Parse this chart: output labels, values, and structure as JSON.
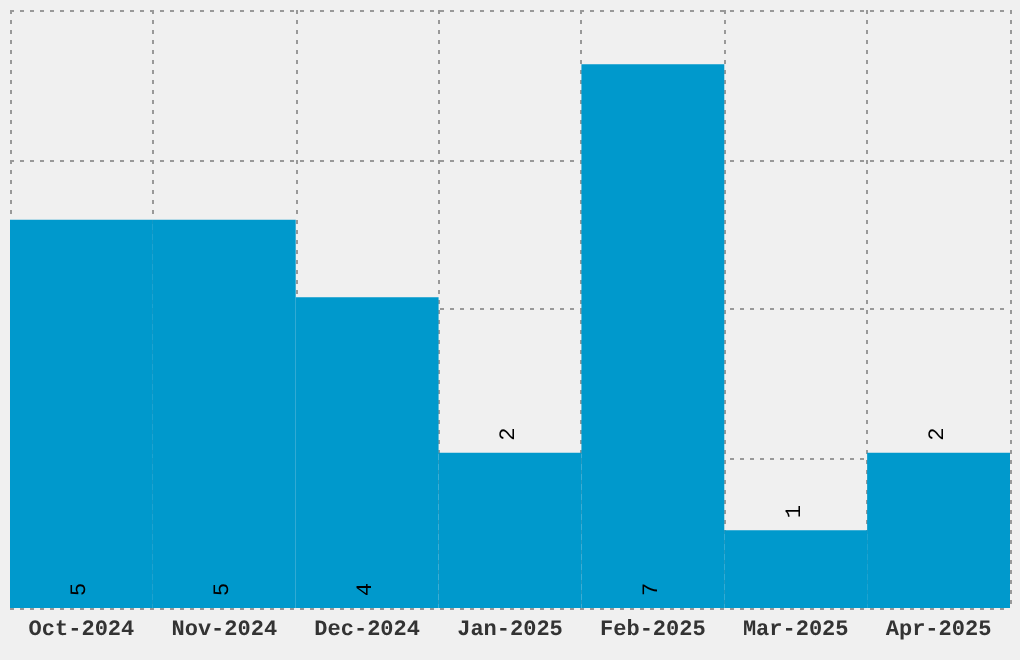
{
  "chart_data": {
    "type": "bar",
    "categories": [
      "Oct-2024",
      "Nov-2024",
      "Dec-2024",
      "Jan-2025",
      "Feb-2025",
      "Mar-2025",
      "Apr-2025"
    ],
    "values": [
      5,
      5,
      4,
      2,
      7,
      1,
      2
    ],
    "color": "#0099cc",
    "ylim": [
      0,
      7.7
    ],
    "yticks": [
      {
        "value": 0,
        "label": null
      },
      {
        "value": 1.925,
        "label": null
      },
      {
        "value": 3.85,
        "label": null
      },
      {
        "value": 5.775,
        "label": null
      },
      {
        "value": 7.7,
        "label": null
      }
    ],
    "tick_labels": "x",
    "grid": true,
    "data_labels": true
  }
}
